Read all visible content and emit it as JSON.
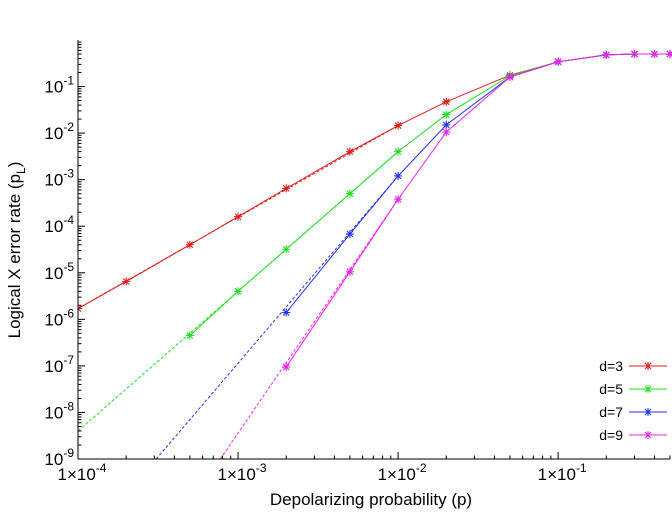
{
  "chart_data": {
    "type": "line",
    "xlabel": "Depolarizing probability (p)",
    "ylabel": "Logical X error rate (pL)",
    "xscale": "log",
    "yscale": "log",
    "xlim": [
      0.0001,
      0.5
    ],
    "ylim": [
      1e-09,
      1
    ],
    "grid": false,
    "legend_position": "bottom-right",
    "x_ticks": [
      {
        "value": 0.0001,
        "label": "1×10-4"
      },
      {
        "value": 0.001,
        "label": "1×10-3"
      },
      {
        "value": 0.01,
        "label": "1×10-2"
      },
      {
        "value": 0.1,
        "label": "1×10-1"
      }
    ],
    "y_ticks": [
      {
        "value": 1e-09,
        "label": "10-9"
      },
      {
        "value": 1e-08,
        "label": "10-8"
      },
      {
        "value": 1e-07,
        "label": "10-7"
      },
      {
        "value": 1e-06,
        "label": "10-6"
      },
      {
        "value": 1e-05,
        "label": "10-5"
      },
      {
        "value": 0.0001,
        "label": "10-4"
      },
      {
        "value": 0.001,
        "label": "10-3"
      },
      {
        "value": 0.01,
        "label": "10-2"
      },
      {
        "value": 0.1,
        "label": "10-1"
      }
    ],
    "series": [
      {
        "name": "d=3",
        "color": "#e41a1c",
        "points": [
          {
            "x": 0.0001,
            "y": 1.7e-06
          },
          {
            "x": 0.0002,
            "y": 6.5e-06
          },
          {
            "x": 0.0005,
            "y": 4e-05
          },
          {
            "x": 0.001,
            "y": 0.00016
          },
          {
            "x": 0.002,
            "y": 0.00065
          },
          {
            "x": 0.005,
            "y": 0.004
          },
          {
            "x": 0.01,
            "y": 0.0145
          },
          {
            "x": 0.02,
            "y": 0.047
          },
          {
            "x": 0.05,
            "y": 0.175
          },
          {
            "x": 0.1,
            "y": 0.34
          },
          {
            "x": 0.2,
            "y": 0.48
          },
          {
            "x": 0.3,
            "y": 0.5
          },
          {
            "x": 0.4,
            "y": 0.5
          },
          {
            "x": 0.5,
            "y": 0.5
          }
        ],
        "fit": [
          {
            "x": 0.0001,
            "y": 1.7e-06
          },
          {
            "x": 0.01,
            "y": 0.0145
          }
        ]
      },
      {
        "name": "d=5",
        "color": "#22dd22",
        "points": [
          {
            "x": 0.0005,
            "y": 4.5e-07
          },
          {
            "x": 0.001,
            "y": 4e-06
          },
          {
            "x": 0.002,
            "y": 3.2e-05
          },
          {
            "x": 0.005,
            "y": 0.0005
          },
          {
            "x": 0.01,
            "y": 0.004
          },
          {
            "x": 0.02,
            "y": 0.025
          },
          {
            "x": 0.05,
            "y": 0.17
          },
          {
            "x": 0.1,
            "y": 0.34
          },
          {
            "x": 0.2,
            "y": 0.48
          },
          {
            "x": 0.3,
            "y": 0.5
          },
          {
            "x": 0.4,
            "y": 0.5
          },
          {
            "x": 0.5,
            "y": 0.5
          }
        ],
        "fit": [
          {
            "x": 0.0001,
            "y": 4e-09
          },
          {
            "x": 0.01,
            "y": 0.004
          }
        ]
      },
      {
        "name": "d=7",
        "color": "#2233ee",
        "points": [
          {
            "x": 0.002,
            "y": 1.4e-06
          },
          {
            "x": 0.005,
            "y": 6.8e-05
          },
          {
            "x": 0.01,
            "y": 0.0012
          },
          {
            "x": 0.02,
            "y": 0.015
          },
          {
            "x": 0.05,
            "y": 0.16
          },
          {
            "x": 0.1,
            "y": 0.34
          },
          {
            "x": 0.2,
            "y": 0.48
          },
          {
            "x": 0.3,
            "y": 0.5
          },
          {
            "x": 0.4,
            "y": 0.5
          },
          {
            "x": 0.5,
            "y": 0.5
          }
        ],
        "fit": [
          {
            "x": 0.000308,
            "y": 1e-09
          },
          {
            "x": 0.01,
            "y": 0.0012
          }
        ]
      },
      {
        "name": "d=9",
        "color": "#ee22ee",
        "points": [
          {
            "x": 0.002,
            "y": 9.5e-08
          },
          {
            "x": 0.005,
            "y": 1.05e-05
          },
          {
            "x": 0.01,
            "y": 0.00038
          },
          {
            "x": 0.02,
            "y": 0.0105
          },
          {
            "x": 0.05,
            "y": 0.16
          },
          {
            "x": 0.1,
            "y": 0.34
          },
          {
            "x": 0.2,
            "y": 0.48
          },
          {
            "x": 0.3,
            "y": 0.5
          },
          {
            "x": 0.4,
            "y": 0.5
          },
          {
            "x": 0.5,
            "y": 0.5
          }
        ],
        "fit": [
          {
            "x": 0.000775,
            "y": 1e-09
          },
          {
            "x": 0.01,
            "y": 0.00038
          }
        ]
      }
    ]
  }
}
